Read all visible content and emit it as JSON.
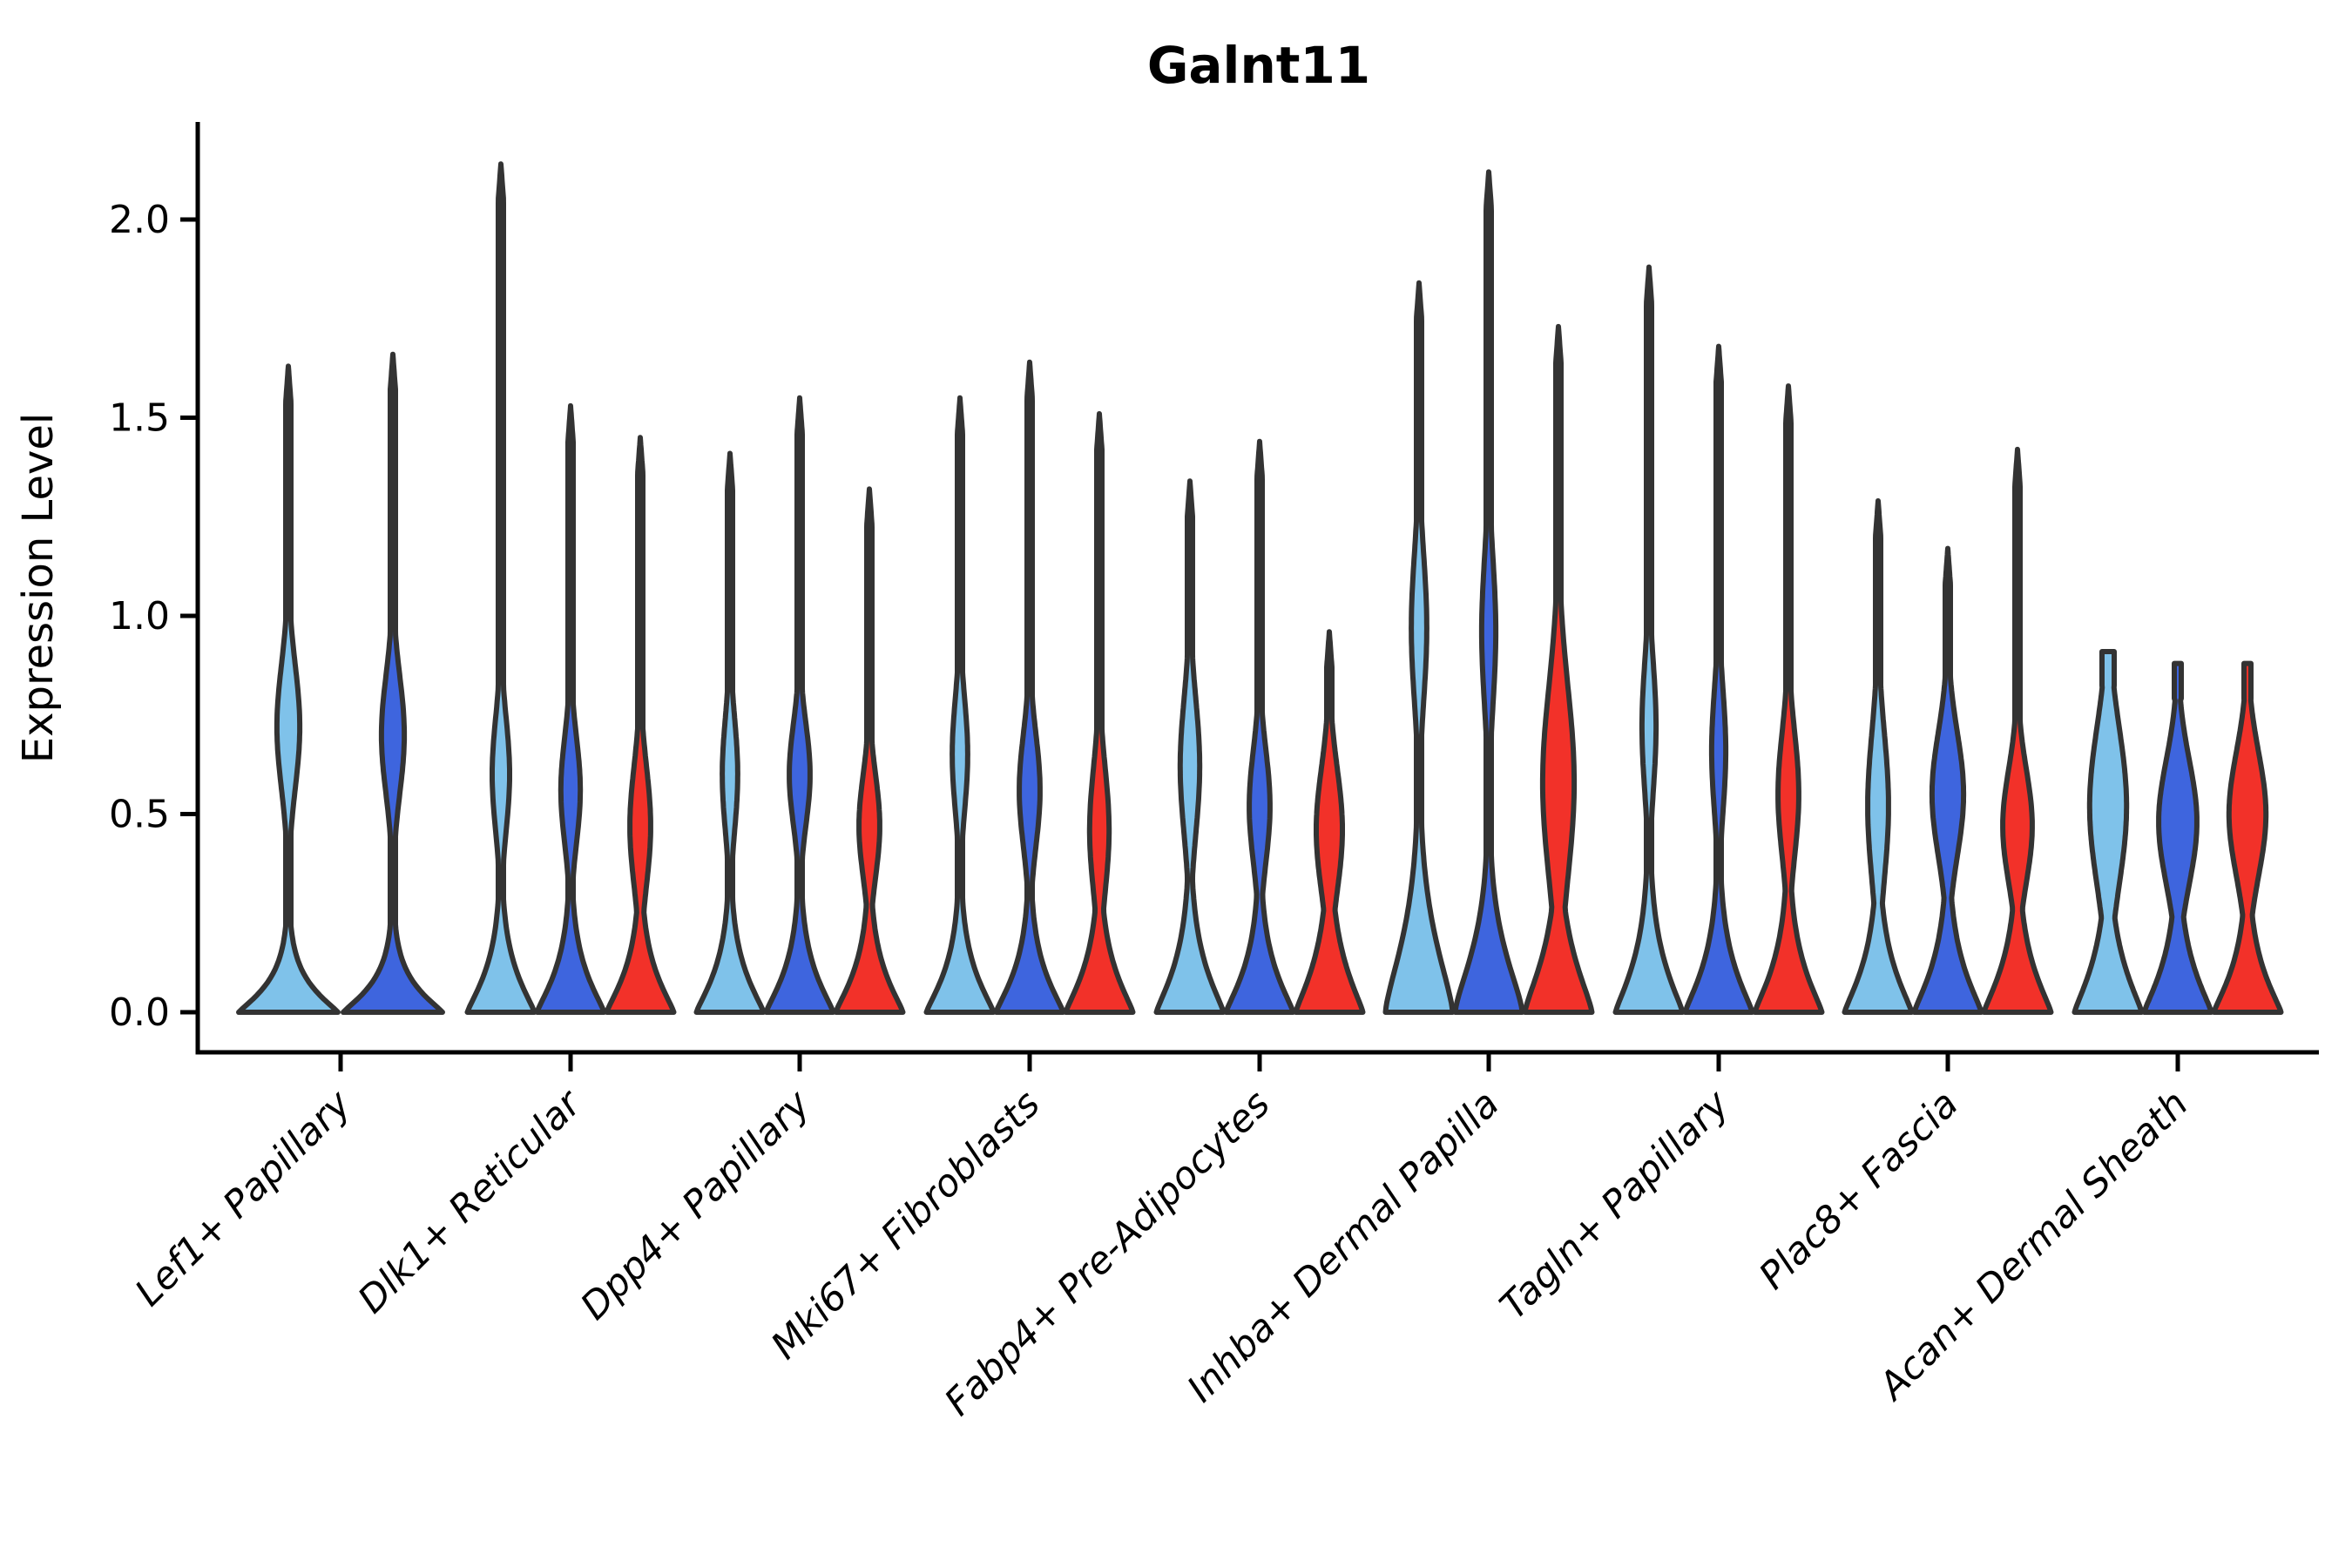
{
  "chart_data": {
    "type": "violin",
    "title": "Galnt11",
    "ylabel": "Expression Level",
    "xlabel": "",
    "yticks": [
      "0.0",
      "0.5",
      "1.0",
      "1.5",
      "2.0"
    ],
    "ytick_values": [
      0.0,
      0.5,
      1.0,
      1.5,
      2.0
    ],
    "ylim": [
      -0.08,
      2.25
    ],
    "grid": false,
    "legend_position": "none",
    "categories": [
      "Lef1+ Papillary",
      "Dlk1+ Reticular",
      "Dpp4+ Papillary",
      "Mki67+ Fibroblasts",
      "Fabp4+ Pre-Adipocytes",
      "Inhba+ Dermal Papilla",
      "Tagln+ Papillary",
      "Plac8+ Fascia",
      "Acan+ Dermal Sheath"
    ],
    "series": [
      {
        "name": "series-1-lightblue",
        "color": "#7FC2EA"
      },
      {
        "name": "series-2-royalblue",
        "color": "#3E65DE"
      },
      {
        "name": "series-3-red",
        "color": "#F23129"
      }
    ],
    "violins": [
      {
        "category": "Lef1+ Papillary",
        "series": 0,
        "max": 1.63,
        "bulge_center": 0.72,
        "bulge_width": 0.23,
        "bulge_sigma": 0.22,
        "foot_scale": 0.085,
        "foot_power": 1.15,
        "flat_tip": 0
      },
      {
        "category": "Lef1+ Papillary",
        "series": 1,
        "max": 1.66,
        "bulge_center": 0.7,
        "bulge_width": 0.23,
        "bulge_sigma": 0.21,
        "foot_scale": 0.085,
        "foot_power": 1.15,
        "flat_tip": 0
      },
      {
        "category": "Dlk1+ Reticular",
        "series": 0,
        "max": 2.14,
        "bulge_center": 0.6,
        "bulge_width": 0.26,
        "bulge_sigma": 0.2,
        "foot_scale": 0.13,
        "foot_power": 1.2,
        "flat_tip": 0
      },
      {
        "category": "Dlk1+ Reticular",
        "series": 1,
        "max": 1.53,
        "bulge_center": 0.56,
        "bulge_width": 0.29,
        "bulge_sigma": 0.19,
        "foot_scale": 0.13,
        "foot_power": 1.2,
        "flat_tip": 0
      },
      {
        "category": "Dlk1+ Reticular",
        "series": 2,
        "max": 1.45,
        "bulge_center": 0.47,
        "bulge_width": 0.31,
        "bulge_sigma": 0.21,
        "foot_scale": 0.13,
        "foot_power": 1.2,
        "flat_tip": 0
      },
      {
        "category": "Dpp4+ Papillary",
        "series": 0,
        "max": 1.41,
        "bulge_center": 0.6,
        "bulge_width": 0.23,
        "bulge_sigma": 0.2,
        "foot_scale": 0.13,
        "foot_power": 1.2,
        "flat_tip": 0
      },
      {
        "category": "Dpp4+ Papillary",
        "series": 1,
        "max": 1.55,
        "bulge_center": 0.6,
        "bulge_width": 0.31,
        "bulge_sigma": 0.18,
        "foot_scale": 0.13,
        "foot_power": 1.2,
        "flat_tip": 0
      },
      {
        "category": "Dpp4+ Papillary",
        "series": 2,
        "max": 1.32,
        "bulge_center": 0.47,
        "bulge_width": 0.31,
        "bulge_sigma": 0.18,
        "foot_scale": 0.13,
        "foot_power": 1.2,
        "flat_tip": 0
      },
      {
        "category": "Mki67+ Fibroblasts",
        "series": 0,
        "max": 1.55,
        "bulge_center": 0.65,
        "bulge_width": 0.23,
        "bulge_sigma": 0.2,
        "foot_scale": 0.13,
        "foot_power": 1.2,
        "flat_tip": 0
      },
      {
        "category": "Mki67+ Fibroblasts",
        "series": 1,
        "max": 1.64,
        "bulge_center": 0.56,
        "bulge_width": 0.31,
        "bulge_sigma": 0.2,
        "foot_scale": 0.13,
        "foot_power": 1.2,
        "flat_tip": 0
      },
      {
        "category": "Mki67+ Fibroblasts",
        "series": 2,
        "max": 1.51,
        "bulge_center": 0.46,
        "bulge_width": 0.29,
        "bulge_sigma": 0.22,
        "foot_scale": 0.14,
        "foot_power": 1.2,
        "flat_tip": 0
      },
      {
        "category": "Fabp4+ Pre-Adipocytes",
        "series": 0,
        "max": 1.34,
        "bulge_center": 0.62,
        "bulge_width": 0.29,
        "bulge_sigma": 0.24,
        "foot_scale": 0.15,
        "foot_power": 1.2,
        "flat_tip": 0
      },
      {
        "category": "Fabp4+ Pre-Adipocytes",
        "series": 1,
        "max": 1.44,
        "bulge_center": 0.52,
        "bulge_width": 0.31,
        "bulge_sigma": 0.2,
        "foot_scale": 0.14,
        "foot_power": 1.2,
        "flat_tip": 0
      },
      {
        "category": "Fabp4+ Pre-Adipocytes",
        "series": 2,
        "max": 0.96,
        "bulge_center": 0.46,
        "bulge_width": 0.39,
        "bulge_sigma": 0.22,
        "foot_scale": 0.16,
        "foot_power": 1.2,
        "flat_tip": 0
      },
      {
        "category": "Inhba+ Dermal Papilla",
        "series": 0,
        "max": 1.84,
        "bulge_center": 0.97,
        "bulge_width": 0.23,
        "bulge_sigma": 0.26,
        "foot_scale": 0.24,
        "foot_power": 1.4,
        "flat_tip": 0
      },
      {
        "category": "Inhba+ Dermal Papilla",
        "series": 1,
        "max": 2.12,
        "bulge_center": 0.96,
        "bulge_width": 0.21,
        "bulge_sigma": 0.26,
        "foot_scale": 0.2,
        "foot_power": 1.4,
        "flat_tip": 0
      },
      {
        "category": "Inhba+ Dermal Papilla",
        "series": 2,
        "max": 1.73,
        "bulge_center": 0.58,
        "bulge_width": 0.47,
        "bulge_sigma": 0.34,
        "foot_scale": 0.18,
        "foot_power": 1.3,
        "flat_tip": 0
      },
      {
        "category": "Tagln+ Papillary",
        "series": 0,
        "max": 1.88,
        "bulge_center": 0.72,
        "bulge_width": 0.21,
        "bulge_sigma": 0.23,
        "foot_scale": 0.16,
        "foot_power": 1.2,
        "flat_tip": 0
      },
      {
        "category": "Tagln+ Papillary",
        "series": 1,
        "max": 1.68,
        "bulge_center": 0.66,
        "bulge_width": 0.21,
        "bulge_sigma": 0.22,
        "foot_scale": 0.15,
        "foot_power": 1.2,
        "flat_tip": 0
      },
      {
        "category": "Tagln+ Papillary",
        "series": 2,
        "max": 1.58,
        "bulge_center": 0.55,
        "bulge_width": 0.31,
        "bulge_sigma": 0.22,
        "foot_scale": 0.15,
        "foot_power": 1.2,
        "flat_tip": 0
      },
      {
        "category": "Plac8+ Fascia",
        "series": 0,
        "max": 1.29,
        "bulge_center": 0.52,
        "bulge_width": 0.31,
        "bulge_sigma": 0.26,
        "foot_scale": 0.15,
        "foot_power": 1.2,
        "flat_tip": 0
      },
      {
        "category": "Plac8+ Fascia",
        "series": 1,
        "max": 1.17,
        "bulge_center": 0.55,
        "bulge_width": 0.47,
        "bulge_sigma": 0.22,
        "foot_scale": 0.15,
        "foot_power": 1.2,
        "flat_tip": 0
      },
      {
        "category": "Plac8+ Fascia",
        "series": 2,
        "max": 1.42,
        "bulge_center": 0.47,
        "bulge_width": 0.44,
        "bulge_sigma": 0.2,
        "foot_scale": 0.15,
        "foot_power": 1.2,
        "flat_tip": 0
      },
      {
        "category": "Acan+ Dermal Sheath",
        "series": 0,
        "max": 0.91,
        "bulge_center": 0.52,
        "bulge_width": 0.55,
        "bulge_sigma": 0.28,
        "foot_scale": 0.16,
        "foot_power": 1.2,
        "flat_tip": 7
      },
      {
        "category": "Acan+ Dermal Sheath",
        "series": 1,
        "max": 0.88,
        "bulge_center": 0.48,
        "bulge_width": 0.57,
        "bulge_sigma": 0.22,
        "foot_scale": 0.15,
        "foot_power": 1.2,
        "flat_tip": 4
      },
      {
        "category": "Acan+ Dermal Sheath",
        "series": 2,
        "max": 0.88,
        "bulge_center": 0.5,
        "bulge_width": 0.55,
        "bulge_sigma": 0.22,
        "foot_scale": 0.14,
        "foot_power": 1.2,
        "flat_tip": 4
      }
    ]
  },
  "style": {
    "outline_color": "#333333",
    "axis_color": "#000000",
    "text_color": "#000000",
    "background": "#ffffff"
  }
}
